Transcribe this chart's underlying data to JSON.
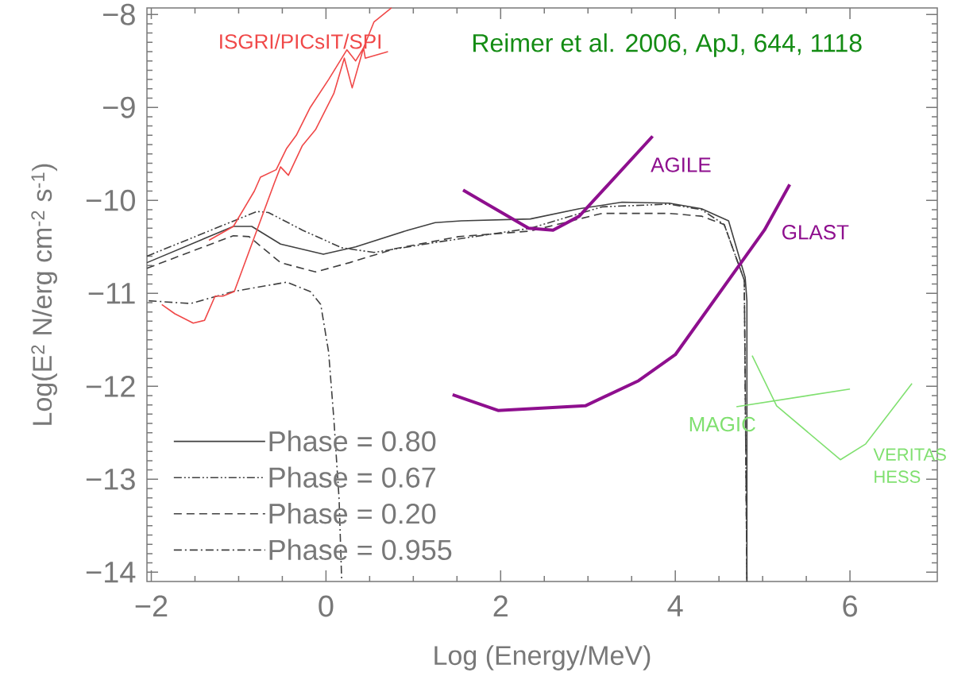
{
  "chart_data": {
    "type": "line",
    "xlabel": "Log (Energy/MeV)",
    "ylabel": "Log(E$^{2}$ N/erg cm$^{-2}$ s$^{-1}$)",
    "annotations": [
      "Reimer et al. 2006, ApJ, 644, 1118"
    ],
    "xlim": [
      -2.05,
      7.0
    ],
    "ylim": [
      -14.1,
      -7.93
    ],
    "xticks": [
      {
        "value": -2,
        "label": "−2"
      },
      0,
      2,
      4,
      6
    ],
    "yticks": [
      {
        "value": -14,
        "label": "−14"
      },
      {
        "value": -13,
        "label": "−13"
      },
      {
        "value": -12,
        "label": "−12"
      },
      {
        "value": -11,
        "label": "−11"
      },
      {
        "value": -10,
        "label": "−10"
      },
      {
        "value": -9,
        "label": "−9"
      },
      {
        "value": -8,
        "label": "−8"
      }
    ],
    "legend": "bottom left",
    "grid": false,
    "series": [
      {
        "name": "Phase = 0.80",
        "color": "#404040",
        "line_style": "solid",
        "x": [
          -2.05,
          -1.06,
          -0.85,
          -0.52,
          -0.03,
          0.34,
          0.94,
          1.25,
          1.55,
          2.34,
          2.9,
          3.39,
          3.93,
          4.3,
          4.61,
          4.8,
          4.82,
          4.82
        ],
        "values": [
          -10.67,
          -10.28,
          -10.28,
          -10.47,
          -10.58,
          -10.5,
          -10.32,
          -10.24,
          -10.22,
          -10.2,
          -10.09,
          -10.02,
          -10.03,
          -10.09,
          -10.22,
          -10.83,
          -11.08,
          -14.1
        ]
      },
      {
        "name": "Phase = 0.67",
        "color": "#404040",
        "line_style": "dashdotdot",
        "x": [
          -2.05,
          -0.79,
          -0.66,
          -0.27,
          0.18,
          0.55,
          1.27,
          2.34,
          3.16,
          3.93,
          4.3,
          4.56,
          4.79,
          4.82
        ],
        "values": [
          -10.6,
          -10.12,
          -10.13,
          -10.32,
          -10.51,
          -10.56,
          -10.45,
          -10.3,
          -10.07,
          -10.04,
          -10.1,
          -10.26,
          -10.86,
          -14.1
        ]
      },
      {
        "name": "Phase = 0.20",
        "color": "#404040",
        "line_style": "dashed",
        "x": [
          -2.05,
          -1.06,
          -0.88,
          -0.52,
          -0.12,
          0.27,
          0.79,
          1.52,
          2.34,
          3.16,
          3.93,
          4.3,
          4.56,
          4.79,
          4.82
        ],
        "values": [
          -10.73,
          -10.38,
          -10.39,
          -10.67,
          -10.77,
          -10.67,
          -10.52,
          -10.39,
          -10.33,
          -10.14,
          -10.14,
          -10.17,
          -10.26,
          -10.86,
          -14.1
        ]
      },
      {
        "name": "Phase = 0.955",
        "color": "#404040",
        "line_style": "dashdot",
        "x": [
          -2.03,
          -1.55,
          -1.06,
          -0.45,
          -0.18,
          -0.06,
          0.03,
          0.09,
          0.15,
          0.18
        ],
        "values": [
          -11.08,
          -11.11,
          -10.98,
          -10.88,
          -10.98,
          -11.12,
          -11.63,
          -12.35,
          -13.21,
          -14.09
        ]
      },
      {
        "name": "ISGRI/PICsIT/SPI",
        "color": "#f04848",
        "line_style": "solid",
        "x": [
          -1.34,
          -1.06,
          -0.82,
          -0.75,
          -0.57,
          -0.45,
          -0.34,
          -0.18,
          0.03,
          0.24,
          0.34,
          0.43,
          0.55,
          0.75
        ],
        "values": [
          -10.43,
          -10.28,
          -9.9,
          -9.75,
          -9.67,
          -9.44,
          -9.3,
          -9.0,
          -8.7,
          -8.38,
          -8.5,
          -8.36,
          -8.08,
          -7.93
        ]
      },
      {
        "color": "#f04848",
        "line_style": "solid",
        "x": [
          -1.88,
          -1.73,
          -1.52,
          -1.39,
          -1.27,
          -1.18,
          -1.05,
          -0.59,
          -0.52,
          -0.43,
          -0.27,
          -0.12,
          0.09,
          0.21,
          0.3,
          0.43,
          0.45,
          0.71
        ],
        "values": [
          -11.12,
          -11.22,
          -11.32,
          -11.29,
          -11.03,
          -11.03,
          -10.98,
          -9.81,
          -9.64,
          -9.73,
          -9.41,
          -9.24,
          -8.85,
          -8.47,
          -8.79,
          -8.36,
          -8.47,
          -8.4
        ]
      },
      {
        "name": "AGILE",
        "color": "#8e0f8e",
        "line_style": "solid",
        "x": [
          1.57,
          2.32,
          2.6,
          2.9,
          3.74
        ],
        "values": [
          -9.89,
          -10.3,
          -10.32,
          -10.17,
          -9.31
        ]
      },
      {
        "name": "GLAST",
        "color": "#8e0f8e",
        "line_style": "solid",
        "x": [
          1.45,
          1.97,
          2.97,
          3.58,
          4.0,
          5.02,
          5.31
        ],
        "values": [
          -12.09,
          -12.26,
          -12.21,
          -11.94,
          -11.66,
          -10.32,
          -9.83
        ]
      },
      {
        "name": "MAGIC",
        "color": "#80e070",
        "line_style": "solid",
        "x": [
          4.7,
          6.0
        ],
        "values": [
          -12.22,
          -12.03
        ]
      },
      {
        "name": "VERITAS HESS",
        "color": "#80e070",
        "line_style": "solid",
        "x": [
          4.88,
          5.16,
          5.89,
          6.18,
          6.71
        ],
        "values": [
          -11.67,
          -12.21,
          -12.79,
          -12.62,
          -11.97
        ]
      }
    ]
  }
}
